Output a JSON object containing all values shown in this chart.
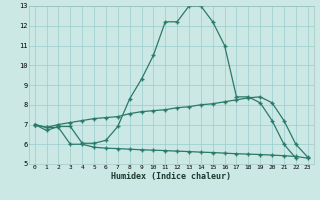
{
  "xlabel": "Humidex (Indice chaleur)",
  "bg_color": "#cce8e4",
  "line_color": "#2a7a6a",
  "grid_color": "#99cccc",
  "xlim": [
    -0.5,
    23.5
  ],
  "ylim": [
    5,
    13
  ],
  "yticks": [
    5,
    6,
    7,
    8,
    9,
    10,
    11,
    12,
    13
  ],
  "xticks": [
    0,
    1,
    2,
    3,
    4,
    5,
    6,
    7,
    8,
    9,
    10,
    11,
    12,
    13,
    14,
    15,
    16,
    17,
    18,
    19,
    20,
    21,
    22,
    23
  ],
  "line1_x": [
    0,
    1,
    2,
    3,
    4,
    5,
    6,
    7,
    8,
    9,
    10,
    11,
    12,
    13,
    14,
    15,
    16,
    17,
    18,
    19,
    20,
    21,
    22
  ],
  "line1_y": [
    7.0,
    6.7,
    6.9,
    6.9,
    6.05,
    6.05,
    6.2,
    6.9,
    8.3,
    9.3,
    10.5,
    12.2,
    12.2,
    13.0,
    13.0,
    12.2,
    11.0,
    8.4,
    8.4,
    8.1,
    7.2,
    6.0,
    5.3
  ],
  "line2_x": [
    0,
    1,
    2,
    3,
    4,
    5,
    6,
    7,
    8,
    9,
    10,
    11,
    12,
    13,
    14,
    15,
    16,
    17,
    18,
    19,
    20,
    21,
    22,
    23
  ],
  "line2_y": [
    7.0,
    6.85,
    7.0,
    7.1,
    7.2,
    7.3,
    7.35,
    7.4,
    7.55,
    7.65,
    7.7,
    7.75,
    7.85,
    7.9,
    8.0,
    8.05,
    8.15,
    8.25,
    8.35,
    8.4,
    8.1,
    7.2,
    6.0,
    5.35
  ],
  "line3_x": [
    0,
    1,
    2,
    3,
    4,
    5,
    6,
    7,
    8,
    9,
    10,
    11,
    12,
    13,
    14,
    15,
    16,
    17,
    18,
    19,
    20,
    21,
    22,
    23
  ],
  "line3_y": [
    7.0,
    6.85,
    6.85,
    6.0,
    6.0,
    5.85,
    5.8,
    5.78,
    5.75,
    5.72,
    5.7,
    5.68,
    5.65,
    5.63,
    5.6,
    5.58,
    5.55,
    5.52,
    5.5,
    5.48,
    5.45,
    5.42,
    5.38,
    5.3
  ]
}
